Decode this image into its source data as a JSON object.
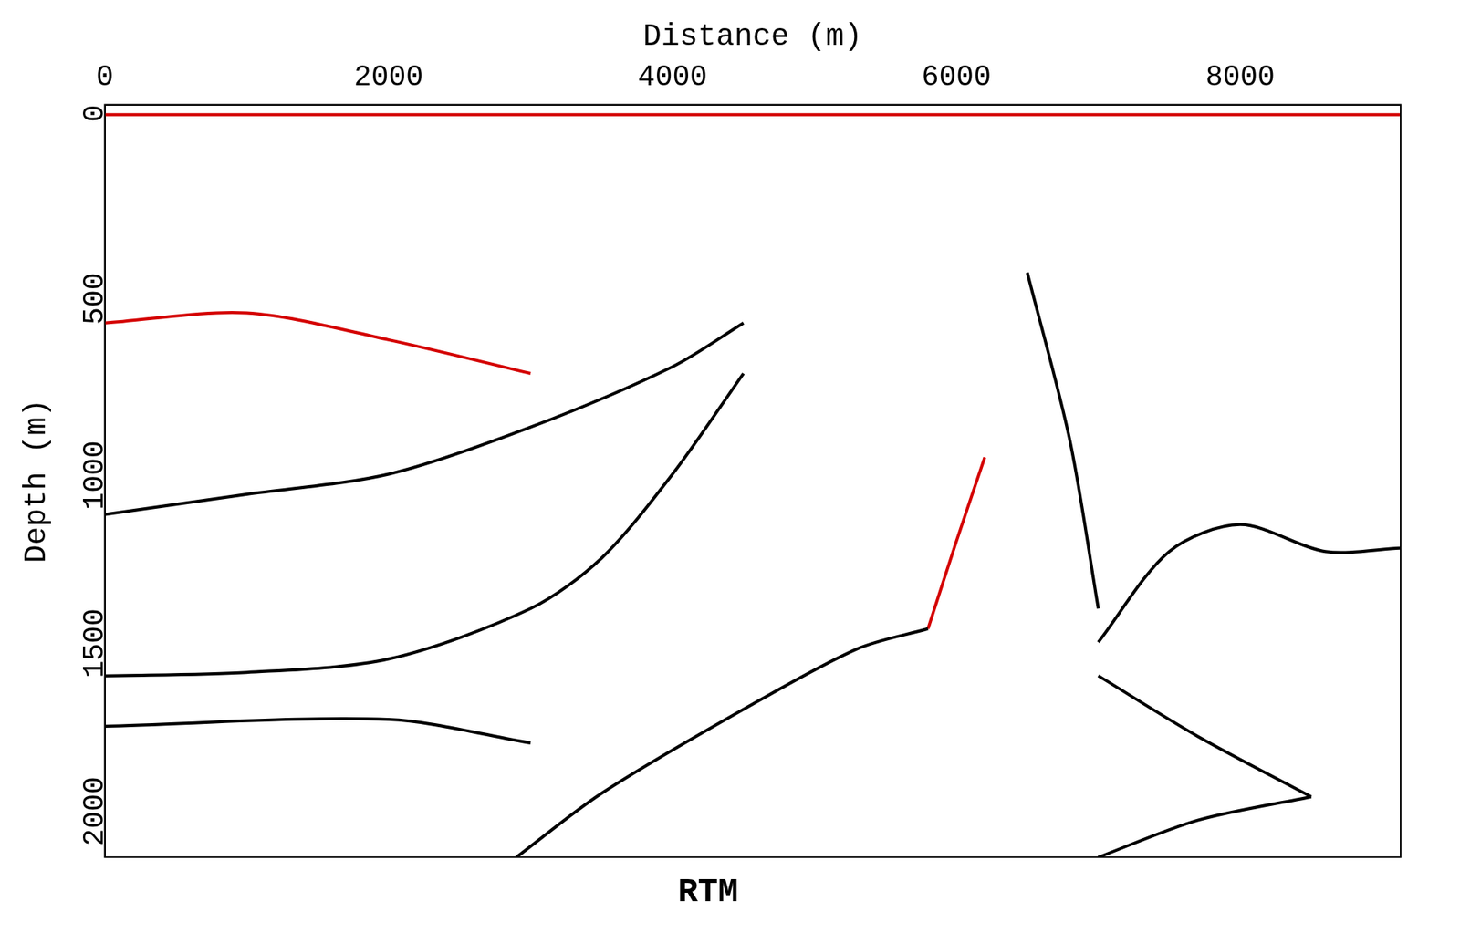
{
  "chart_data": {
    "type": "line",
    "title": "RTM",
    "x_label": "Distance (m)",
    "y_label": "Depth (m)",
    "xlim": [
      0,
      9130
    ],
    "ylim": [
      0,
      2240
    ],
    "xticks": [
      0,
      2000,
      4000,
      6000,
      8000
    ],
    "yticks": [
      0,
      500,
      1000,
      1500,
      2000
    ],
    "grid": false,
    "line_style": "solid",
    "series": [
      {
        "color": "#d40000",
        "x": [
          0,
          1500,
          3000,
          4500,
          6000,
          7500,
          9130
        ],
        "values": [
          30,
          30,
          30,
          30,
          30,
          30,
          30
        ]
      },
      {
        "color": "#d40000",
        "x": [
          0,
          1000,
          2000,
          3000
        ],
        "values": [
          650,
          620,
          700,
          800
        ]
      },
      {
        "color": "#000000",
        "x": [
          0,
          1000,
          2000,
          3000,
          4000,
          4500
        ],
        "values": [
          1220,
          1160,
          1100,
          960,
          780,
          650
        ]
      },
      {
        "color": "#000000",
        "x": [
          0,
          1000,
          2000,
          3000,
          3500,
          4000,
          4500
        ],
        "values": [
          1700,
          1690,
          1650,
          1500,
          1350,
          1100,
          800
        ]
      },
      {
        "color": "#000000",
        "x": [
          0,
          2000,
          3000
        ],
        "values": [
          1850,
          1830,
          1900
        ]
      },
      {
        "color": "#000000",
        "x": [
          2900,
          3500,
          4500,
          5300,
          5800
        ],
        "values": [
          2240,
          2050,
          1800,
          1620,
          1560
        ]
      },
      {
        "color": "#000000",
        "x": [
          7000,
          7500,
          8000,
          8600,
          9130
        ],
        "values": [
          1600,
          1330,
          1250,
          1330,
          1320
        ]
      },
      {
        "color": "#000000",
        "x": [
          7000,
          7700,
          8500
        ],
        "values": [
          1700,
          1880,
          2060
        ]
      },
      {
        "color": "#000000",
        "x": [
          7000,
          7700,
          8500
        ],
        "values": [
          2240,
          2130,
          2060
        ]
      },
      {
        "color": "#000000",
        "x": [
          6500,
          6800,
          7000
        ],
        "values": [
          500,
          1000,
          1500
        ]
      },
      {
        "color": "#d40000",
        "x": [
          6200,
          6000,
          5800
        ],
        "values": [
          1050,
          1300,
          1560
        ]
      }
    ]
  }
}
